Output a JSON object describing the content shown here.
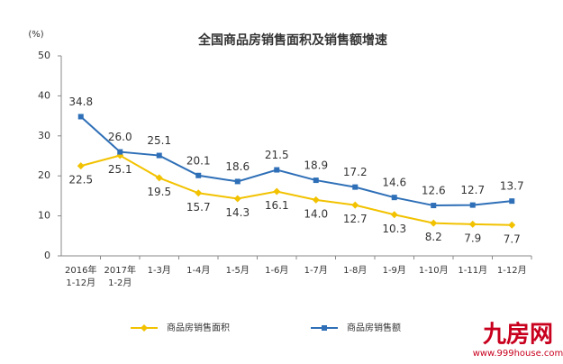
{
  "chart_data": {
    "type": "line",
    "title": "全国商品房销售面积及销售额增速",
    "y_unit": "(%)",
    "categories": [
      "2016年 1-12月",
      "2017年 1-2月",
      "1-3月",
      "1-4月",
      "1-5月",
      "1-6月",
      "1-7月",
      "1-8月",
      "1-9月",
      "1-10月",
      "1-11月",
      "1-12月"
    ],
    "series": [
      {
        "name": "商品房销售面积",
        "color": "#f2c200",
        "values": [
          22.5,
          25.1,
          19.5,
          15.7,
          14.3,
          16.1,
          14.0,
          12.7,
          10.3,
          8.2,
          7.9,
          7.7
        ],
        "value_labels": [
          "22.5",
          "25.1",
          "19.5",
          "15.7",
          "14.3",
          "16.1",
          "14.0",
          "12.7",
          "10.3",
          "8.2",
          "7.9",
          "7.7"
        ]
      },
      {
        "name": "商品房销售额",
        "color": "#2e6fb7",
        "values": [
          34.8,
          26.0,
          25.1,
          20.1,
          18.6,
          21.5,
          18.9,
          17.2,
          14.6,
          12.6,
          12.7,
          13.7
        ],
        "value_labels": [
          "34.8",
          "26.0",
          "25.1",
          "20.1",
          "18.6",
          "21.5",
          "18.9",
          "17.2",
          "14.6",
          "12.6",
          "12.7",
          "13.7"
        ]
      }
    ],
    "ylim": [
      0,
      50
    ],
    "yticks": [
      0,
      10,
      20,
      30,
      40,
      50
    ],
    "grid": false
  },
  "watermark": {
    "logo": "九房网",
    "url": "www.999house.com"
  }
}
